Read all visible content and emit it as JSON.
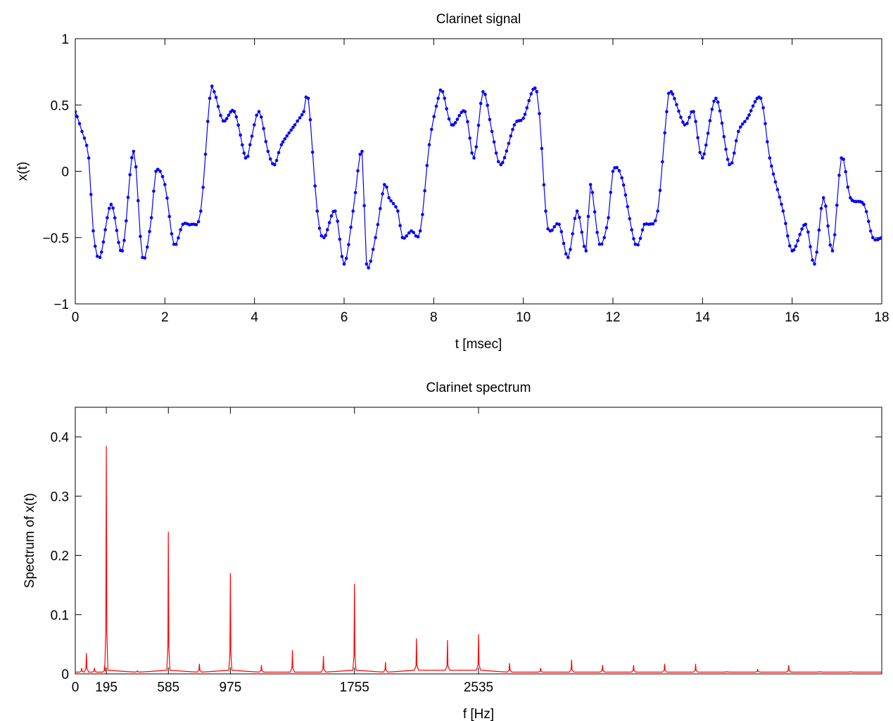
{
  "chart_data": [
    {
      "type": "line",
      "title": "Clarinet signal",
      "xlabel": "t [msec]",
      "ylabel": "x(t)",
      "xlim": [
        0,
        18
      ],
      "ylim": [
        -1,
        1
      ],
      "xticks": [
        0,
        2,
        4,
        6,
        8,
        10,
        12,
        14,
        16,
        18
      ],
      "xtick_labels": [
        "0",
        "2",
        "4",
        "6",
        "8",
        "10",
        "12",
        "14",
        "16",
        "18"
      ],
      "yticks": [
        -1,
        -0.5,
        0,
        0.5,
        1
      ],
      "ytick_labels": [
        "−1",
        "−0.5",
        "0",
        "0.5",
        "1"
      ],
      "grid": false,
      "marker": "dot",
      "series": [
        {
          "color": "#0000ff",
          "x": [
            0.0,
            0.15,
            0.3,
            0.4,
            0.55,
            0.8,
            1.05,
            1.3,
            1.5,
            1.7,
            1.8,
            2.0,
            2.2,
            2.4,
            2.6,
            2.8,
            3.0,
            3.1,
            3.3,
            3.55,
            3.8,
            3.9,
            4.1,
            4.3,
            4.45,
            4.6,
            4.9,
            5.1,
            5.2,
            5.4,
            5.55,
            5.8,
            6.0,
            6.2,
            6.4,
            6.5,
            6.7,
            6.9,
            7.0,
            7.2,
            7.3,
            7.5,
            7.7,
            7.9,
            8.1,
            8.2,
            8.4,
            8.7,
            8.9,
            9.1,
            9.3,
            9.5,
            9.8,
            10.0,
            10.3,
            10.5,
            10.6,
            10.8,
            11.0,
            11.2,
            11.4,
            11.5,
            11.7,
            11.9,
            12.0,
            12.2,
            12.5,
            12.7,
            12.8,
            13.0,
            13.2,
            13.3,
            13.6,
            13.8,
            14.0,
            14.3,
            14.6,
            14.8,
            15.0,
            15.3,
            15.5,
            15.8,
            16.0,
            16.3,
            16.5,
            16.7,
            16.9,
            17.1,
            17.3,
            17.6,
            17.8,
            18.0
          ],
          "y": [
            0.45,
            0.3,
            0.1,
            -0.45,
            -0.65,
            -0.25,
            -0.6,
            0.15,
            -0.65,
            -0.35,
            0.0,
            -0.1,
            -0.55,
            -0.4,
            -0.4,
            -0.3,
            0.55,
            0.6,
            0.38,
            0.45,
            0.1,
            0.2,
            0.45,
            0.15,
            0.05,
            0.2,
            0.35,
            0.45,
            0.55,
            -0.3,
            -0.5,
            -0.3,
            -0.7,
            -0.3,
            0.15,
            -0.7,
            -0.5,
            -0.1,
            -0.2,
            -0.3,
            -0.5,
            -0.45,
            -0.45,
            0.2,
            0.55,
            0.6,
            0.35,
            0.45,
            0.1,
            0.6,
            0.3,
            0.05,
            0.35,
            0.4,
            0.6,
            -0.3,
            -0.45,
            -0.4,
            -0.65,
            -0.3,
            -0.6,
            -0.1,
            -0.55,
            -0.35,
            0.0,
            -0.05,
            -0.55,
            -0.4,
            -0.4,
            -0.3,
            0.45,
            0.6,
            0.35,
            0.45,
            0.1,
            0.55,
            0.05,
            0.3,
            0.4,
            0.55,
            0.1,
            -0.3,
            -0.6,
            -0.4,
            -0.7,
            -0.2,
            -0.6,
            0.1,
            -0.2,
            -0.25,
            -0.5,
            -0.5
          ]
        }
      ]
    },
    {
      "type": "line",
      "title": "Clarinet spectrum",
      "xlabel": "f [Hz]",
      "ylabel": "Spectrum of x(t)",
      "xlim": [
        0,
        5070
      ],
      "ylim": [
        0,
        0.45
      ],
      "xticks": [
        0,
        195,
        585,
        975,
        1755,
        2535
      ],
      "xtick_labels": [
        "0",
        "195",
        "585",
        "975",
        "1755",
        "2535"
      ],
      "yticks": [
        0,
        0.1,
        0.2,
        0.3,
        0.4
      ],
      "ytick_labels": [
        "0",
        "0.1",
        "0.2",
        "0.3",
        "0.4"
      ],
      "grid": false,
      "series": [
        {
          "color": "#ff0000",
          "peaks_x": [
            40,
            70,
            120,
            185,
            195,
            390,
            585,
            780,
            975,
            1170,
            1365,
            1560,
            1755,
            1950,
            2145,
            2340,
            2535,
            2730,
            2925,
            3120,
            3315,
            3510,
            3705,
            3900,
            4095,
            4290,
            4485,
            4680,
            4875
          ],
          "peaks_y": [
            0.01,
            0.035,
            0.01,
            0.015,
            0.385,
            0.005,
            0.24,
            0.017,
            0.17,
            0.015,
            0.04,
            0.03,
            0.152,
            0.02,
            0.06,
            0.057,
            0.067,
            0.018,
            0.01,
            0.024,
            0.015,
            0.015,
            0.017,
            0.017,
            0.003,
            0.008,
            0.015,
            0.003,
            0.003
          ]
        }
      ]
    }
  ]
}
